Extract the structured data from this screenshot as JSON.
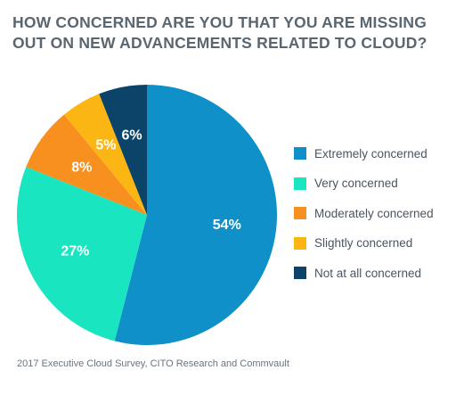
{
  "title": {
    "line1": "HOW CONCERNED ARE YOU THAT YOU ARE MISSING",
    "line2": "OUT ON NEW ADVANCEMENTS RELATED TO CLOUD?"
  },
  "source": "2017 Executive Cloud Survey, CITO Research and Commvault",
  "chart_data": {
    "type": "pie",
    "title": "HOW CONCERNED ARE YOU THAT YOU ARE MISSING OUT ON NEW ADVANCEMENTS RELATED TO CLOUD?",
    "unit": "%",
    "slices": [
      {
        "label": "Extremely concerned",
        "value": 54,
        "display": "54%",
        "color": "#0f90c8",
        "label_color": "#ffffff"
      },
      {
        "label": "Very concerned",
        "value": 27,
        "display": "27%",
        "color": "#19e5c1",
        "label_color": "#ffffff"
      },
      {
        "label": "Moderately concerned",
        "value": 8,
        "display": "8%",
        "color": "#f7901e",
        "label_color": "#ffffff"
      },
      {
        "label": "Slightly concerned",
        "value": 5,
        "display": "5%",
        "color": "#fbb614",
        "label_color": "#ffffff"
      },
      {
        "label": "Not at all concerned",
        "value": 6,
        "display": "6%",
        "color": "#0b4468",
        "label_color": "#ffffff"
      }
    ],
    "legend_position": "right"
  }
}
